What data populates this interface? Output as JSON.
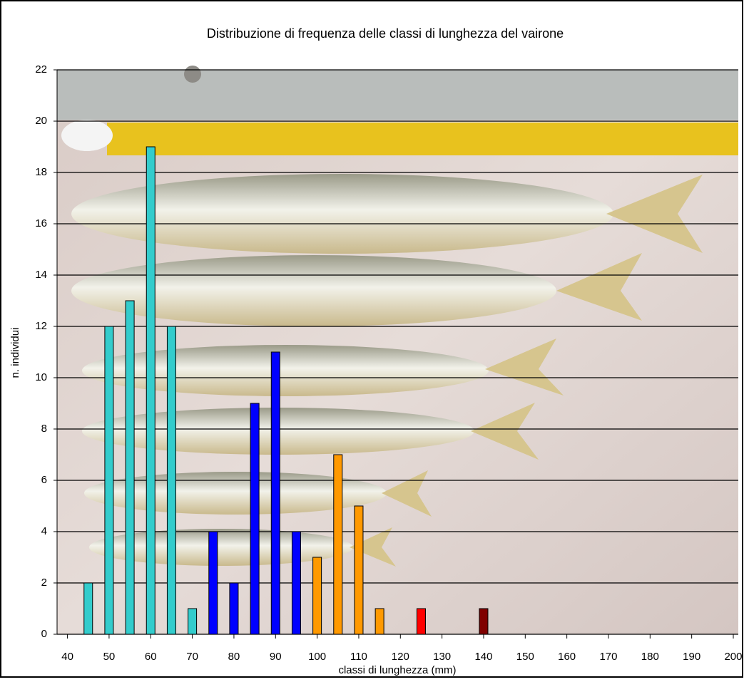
{
  "chart_data": {
    "type": "bar",
    "title": "Distribuzione di frequenza delle classi di lunghezza del vairone",
    "x_label": "classi di lunghezza (mm)",
    "y_label": "n. individui",
    "x": [
      45,
      50,
      55,
      60,
      65,
      70,
      75,
      80,
      85,
      90,
      95,
      100,
      105,
      110,
      115,
      125,
      140
    ],
    "values": [
      2,
      12,
      13,
      19,
      12,
      1,
      4,
      2,
      9,
      11,
      4,
      3,
      7,
      5,
      1,
      1,
      1
    ],
    "colors": [
      "#33cccc",
      "#33cccc",
      "#33cccc",
      "#33cccc",
      "#33cccc",
      "#33cccc",
      "#0000ff",
      "#0000ff",
      "#0000ff",
      "#0000ff",
      "#0000ff",
      "#ff9900",
      "#ff9900",
      "#ff9900",
      "#ff9900",
      "#ff0000",
      "#800000"
    ],
    "xlim": [
      37.5,
      201.2
    ],
    "xticks": [
      40,
      50,
      60,
      70,
      80,
      90,
      100,
      110,
      120,
      130,
      140,
      150,
      160,
      170,
      180,
      190,
      200
    ],
    "ylim": [
      0,
      22
    ],
    "yticks": [
      0,
      2,
      4,
      6,
      8,
      10,
      12,
      14,
      16,
      18,
      20,
      22
    ],
    "grid": true
  }
}
